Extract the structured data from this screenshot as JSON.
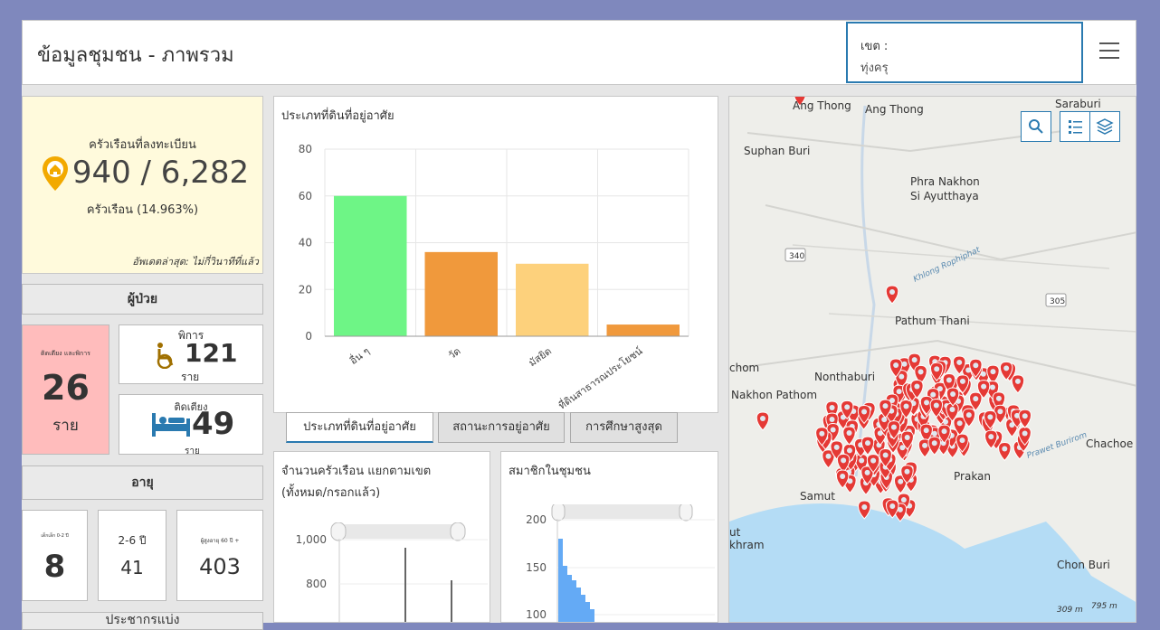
{
  "header": {
    "title": "ข้อมูลชุมชน - ภาพรวม",
    "district_label": "เขต :",
    "district_value": "ทุ่งครุ"
  },
  "households": {
    "label": "ครัวเรือนที่ลงทะเบียน",
    "value": "940 / 6,282",
    "unit": "ครัวเรือน (14.963%)",
    "updated": "อัพเดตล่าสุด: ไม่กี่วินาทีที่แล้ว"
  },
  "patients": {
    "header": "ผู้ป่วย",
    "bedridden_disabled": {
      "label": "ติดเตียง และพิการ",
      "value": "26",
      "unit": "ราย"
    },
    "disabled": {
      "label": "พิการ",
      "value": "121",
      "unit": "ราย"
    },
    "bedridden": {
      "label": "ติดเตียง",
      "value": "49",
      "unit": "ราย"
    }
  },
  "age": {
    "header": "อายุ",
    "groups": [
      {
        "label": "เด็กเล็ก 0-2 ปี",
        "value": "8"
      },
      {
        "label": "2-6 ปี",
        "value": "41"
      },
      {
        "label": "ผู้สูงอายุ 60 ปี +",
        "value": "403"
      }
    ],
    "next_header": "ประชากรแบ่ง"
  },
  "land_chart": {
    "title": "ประเภทที่ดินที่อยู่อาศัย",
    "chart_data": {
      "type": "bar",
      "categories": [
        "อื่น ๆ",
        "วัด",
        "มัสยิด",
        "ที่ดินสาธารณประโยชน์"
      ],
      "values": [
        60,
        36,
        31,
        5
      ],
      "colors": [
        "#6ef586",
        "#f0993c",
        "#fdd17c",
        "#f0993c"
      ],
      "ylim": [
        0,
        80
      ],
      "yticks": [
        "0",
        "20",
        "40",
        "60",
        "80"
      ]
    }
  },
  "tabs": [
    "ประเภทที่ดินที่อยู่อาศัย",
    "สถานะการอยู่อาศัย",
    "การศึกษาสูงสุด"
  ],
  "district_chart": {
    "title_line1": "จำนวนครัวเรือน แยกตามเขต",
    "title_line2": "(ทั้งหมด/กรอกแล้ว)",
    "yticks": [
      "1,000",
      "800"
    ]
  },
  "members_chart": {
    "title": "สมาชิกในชุมชน",
    "yticks": [
      "200",
      "150",
      "100"
    ]
  },
  "map": {
    "labels": [
      "Ang Thong",
      "Ang Thong",
      "Saraburi",
      "Suphan Buri",
      "Phra Nakhon",
      "Si Ayutthaya",
      "340",
      "Khlong Rophiphat",
      "305",
      "Pathum Thani",
      "Nonthaburi",
      "Nakhon Pathom",
      "Chachoe",
      "Samut",
      "Prakan",
      "Prawet Burirom",
      "Chon Buri",
      "795 m",
      "309 m",
      "chom",
      "khram",
      "ut"
    ],
    "colors": {
      "marker": "#e53935",
      "water": "#b4dcf5",
      "land": "#eeeeea"
    }
  }
}
